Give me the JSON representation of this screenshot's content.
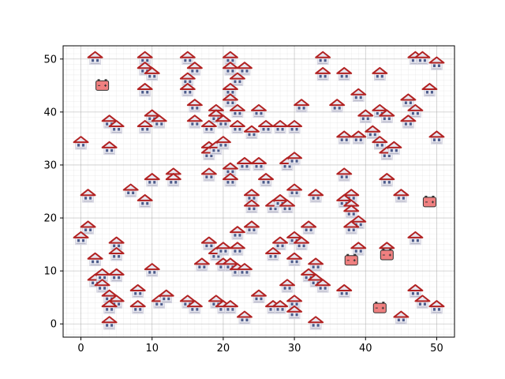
{
  "chart_data": {
    "type": "scatter",
    "title": "",
    "xlabel": "",
    "ylabel": "",
    "xlim": [
      -2.5,
      52.5
    ],
    "ylim": [
      -2.5,
      52.5
    ],
    "xticks": [
      0,
      10,
      20,
      30,
      40,
      50
    ],
    "yticks": [
      0,
      10,
      20,
      30,
      40,
      50
    ],
    "grid": true,
    "minor_grid": true,
    "colors": {
      "house_roof": "#b22222",
      "house_wall": "#e6e6ef",
      "house_door": "#4a5a8a",
      "battery_fill": "#f08080",
      "battery_stroke": "#333333"
    },
    "series": [
      {
        "marker": "house-icon",
        "points": [
          [
            2,
            50
          ],
          [
            9,
            50
          ],
          [
            15,
            50
          ],
          [
            21,
            50
          ],
          [
            34,
            50
          ],
          [
            47,
            50
          ],
          [
            48,
            50
          ],
          [
            50,
            49
          ],
          [
            9,
            48
          ],
          [
            10,
            47
          ],
          [
            16,
            48
          ],
          [
            21,
            48
          ],
          [
            23,
            48
          ],
          [
            34,
            47
          ],
          [
            37,
            47
          ],
          [
            42,
            47
          ],
          [
            15,
            46
          ],
          [
            22,
            46
          ],
          [
            9,
            44
          ],
          [
            15,
            44
          ],
          [
            21,
            44
          ],
          [
            39,
            43
          ],
          [
            49,
            44
          ],
          [
            21,
            42
          ],
          [
            16,
            41
          ],
          [
            31,
            41
          ],
          [
            36,
            41
          ],
          [
            46,
            42
          ],
          [
            19,
            40
          ],
          [
            25,
            40
          ],
          [
            10,
            39
          ],
          [
            11,
            38
          ],
          [
            19,
            39
          ],
          [
            22,
            40
          ],
          [
            42,
            40
          ],
          [
            43,
            39
          ],
          [
            47,
            40
          ],
          [
            40,
            39
          ],
          [
            4,
            38
          ],
          [
            5,
            37
          ],
          [
            9,
            37
          ],
          [
            16,
            38
          ],
          [
            18,
            37
          ],
          [
            20,
            38
          ],
          [
            22,
            37
          ],
          [
            24,
            36
          ],
          [
            26,
            37
          ],
          [
            28,
            37
          ],
          [
            30,
            37
          ],
          [
            46,
            38
          ],
          [
            0,
            34
          ],
          [
            37,
            35
          ],
          [
            39,
            35
          ],
          [
            41,
            36
          ],
          [
            42,
            34
          ],
          [
            43,
            32
          ],
          [
            44,
            33
          ],
          [
            50,
            35
          ],
          [
            4,
            33
          ],
          [
            18,
            33
          ],
          [
            18,
            32
          ],
          [
            19,
            33
          ],
          [
            20,
            34
          ],
          [
            29,
            30
          ],
          [
            30,
            31
          ],
          [
            23,
            30
          ],
          [
            25,
            30
          ],
          [
            21,
            29
          ],
          [
            18,
            28
          ],
          [
            13,
            28
          ],
          [
            13,
            27
          ],
          [
            10,
            27
          ],
          [
            21,
            27
          ],
          [
            26,
            27
          ],
          [
            37,
            28
          ],
          [
            43,
            27
          ],
          [
            7,
            25
          ],
          [
            30,
            25
          ],
          [
            1,
            24
          ],
          [
            24,
            24
          ],
          [
            33,
            24
          ],
          [
            38,
            24
          ],
          [
            45,
            24
          ],
          [
            9,
            23
          ],
          [
            24,
            22
          ],
          [
            27,
            22
          ],
          [
            28,
            23
          ],
          [
            29,
            22
          ],
          [
            37,
            23
          ],
          [
            38,
            22
          ],
          [
            38,
            21
          ],
          [
            39,
            19
          ],
          [
            1,
            18
          ],
          [
            38,
            18
          ],
          [
            24,
            18
          ],
          [
            22,
            17
          ],
          [
            0,
            16
          ],
          [
            5,
            15
          ],
          [
            18,
            15
          ],
          [
            28,
            15
          ],
          [
            30,
            16
          ],
          [
            31,
            15
          ],
          [
            32,
            18
          ],
          [
            47,
            16
          ],
          [
            5,
            13
          ],
          [
            2,
            12
          ],
          [
            19,
            13
          ],
          [
            20,
            14
          ],
          [
            22,
            14
          ],
          [
            27,
            13
          ],
          [
            30,
            12
          ],
          [
            39,
            14
          ],
          [
            43,
            14
          ],
          [
            10,
            10
          ],
          [
            17,
            11
          ],
          [
            20,
            11
          ],
          [
            21,
            11
          ],
          [
            22,
            10
          ],
          [
            23,
            10
          ],
          [
            33,
            11
          ],
          [
            2,
            8
          ],
          [
            3,
            9
          ],
          [
            3,
            7
          ],
          [
            5,
            9
          ],
          [
            32,
            9
          ],
          [
            33,
            8
          ],
          [
            34,
            7
          ],
          [
            8,
            6
          ],
          [
            37,
            6
          ],
          [
            47,
            6
          ],
          [
            4,
            5
          ],
          [
            5,
            4
          ],
          [
            11,
            4
          ],
          [
            12,
            5
          ],
          [
            15,
            4
          ],
          [
            16,
            3
          ],
          [
            19,
            4
          ],
          [
            20,
            3
          ],
          [
            21,
            3
          ],
          [
            25,
            5
          ],
          [
            27,
            3
          ],
          [
            28,
            3
          ],
          [
            29,
            7
          ],
          [
            30,
            4
          ],
          [
            48,
            4
          ],
          [
            4,
            3
          ],
          [
            8,
            3
          ],
          [
            30,
            2
          ],
          [
            50,
            3
          ],
          [
            4,
            0
          ],
          [
            23,
            1
          ],
          [
            33,
            0
          ],
          [
            45,
            1
          ]
        ]
      },
      {
        "marker": "battery-icon",
        "points": [
          [
            3,
            45
          ],
          [
            49,
            23
          ],
          [
            38,
            12
          ],
          [
            43,
            13
          ],
          [
            42,
            3
          ]
        ]
      }
    ]
  }
}
